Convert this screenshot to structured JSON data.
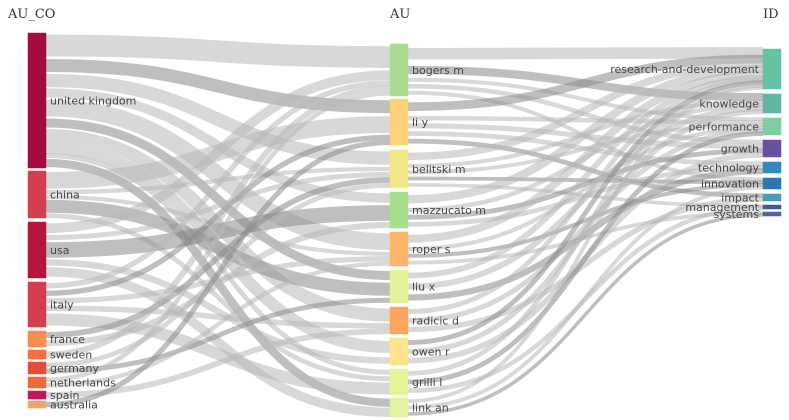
{
  "columns": [
    {
      "key": "au_co",
      "title": "AU_CO"
    },
    {
      "key": "au",
      "title": "AU"
    },
    {
      "key": "id",
      "title": "ID"
    }
  ],
  "nodes": {
    "au_co": [
      {
        "label": "united kingdom",
        "color": "#a50b3e"
      },
      {
        "label": "china",
        "color": "#d53e4f"
      },
      {
        "label": "usa",
        "color": "#b5163c"
      },
      {
        "label": "italy",
        "color": "#d53e4f"
      },
      {
        "label": "france",
        "color": "#f88d52"
      },
      {
        "label": "sweden",
        "color": "#f46d43"
      },
      {
        "label": "germany",
        "color": "#e54a3c"
      },
      {
        "label": "netherlands",
        "color": "#ee6a3a"
      },
      {
        "label": "spain",
        "color": "#c2185b"
      },
      {
        "label": "australia",
        "color": "#f6a36a"
      }
    ],
    "au": [
      {
        "label": "bogers m",
        "color": "#addc91"
      },
      {
        "label": "li y",
        "color": "#fdd178"
      },
      {
        "label": "belitski m",
        "color": "#f2e785"
      },
      {
        "label": "mazzucato m",
        "color": "#a9de8f"
      },
      {
        "label": "roper s",
        "color": "#fdb567"
      },
      {
        "label": "liu x",
        "color": "#e2f399"
      },
      {
        "label": "radicic d",
        "color": "#fca55d"
      },
      {
        "label": "owen r",
        "color": "#fee38c"
      },
      {
        "label": "grilli l",
        "color": "#e6f59a"
      },
      {
        "label": "link an",
        "color": "#e3f4a0"
      }
    ],
    "id": [
      {
        "label": "research-and-development",
        "color": "#66c2a5"
      },
      {
        "label": "knowledge",
        "color": "#5fb6a5"
      },
      {
        "label": "performance",
        "color": "#7fcc9e"
      },
      {
        "label": "growth",
        "color": "#6a4fa0"
      },
      {
        "label": "technology",
        "color": "#3288bd"
      },
      {
        "label": "innovation",
        "color": "#2e78b0"
      },
      {
        "label": "impact",
        "color": "#4a9ab8"
      },
      {
        "label": "management",
        "color": "#3d5a9a"
      },
      {
        "label": "systems",
        "color": "#5560a8"
      }
    ]
  },
  "links_left": [
    [
      0,
      0,
      5
    ],
    [
      0,
      1,
      3
    ],
    [
      0,
      2,
      3
    ],
    [
      0,
      3,
      2
    ],
    [
      0,
      4,
      4
    ],
    [
      0,
      5,
      2
    ],
    [
      0,
      6,
      3
    ],
    [
      0,
      7,
      2
    ],
    [
      0,
      8,
      1
    ],
    [
      0,
      9,
      2
    ],
    [
      1,
      1,
      4
    ],
    [
      1,
      5,
      3
    ],
    [
      1,
      4,
      1
    ],
    [
      1,
      2,
      1
    ],
    [
      1,
      8,
      1
    ],
    [
      2,
      0,
      2
    ],
    [
      2,
      3,
      3
    ],
    [
      2,
      9,
      2
    ],
    [
      2,
      7,
      1
    ],
    [
      2,
      2,
      1
    ],
    [
      3,
      8,
      2
    ],
    [
      3,
      6,
      1
    ],
    [
      3,
      4,
      1
    ],
    [
      3,
      1,
      1
    ],
    [
      3,
      0,
      1
    ],
    [
      4,
      2,
      1
    ],
    [
      4,
      3,
      1
    ],
    [
      5,
      0,
      1
    ],
    [
      6,
      2,
      1
    ],
    [
      6,
      5,
      1
    ],
    [
      7,
      4,
      1
    ],
    [
      7,
      0,
      1
    ],
    [
      8,
      6,
      1
    ],
    [
      9,
      1,
      1
    ]
  ],
  "links_right": [
    [
      0,
      0,
      3
    ],
    [
      0,
      1,
      2
    ],
    [
      0,
      2,
      1
    ],
    [
      0,
      3,
      1
    ],
    [
      0,
      5,
      1
    ],
    [
      1,
      0,
      2
    ],
    [
      1,
      4,
      1
    ],
    [
      1,
      2,
      1
    ],
    [
      1,
      6,
      1
    ],
    [
      1,
      3,
      1
    ],
    [
      2,
      0,
      2
    ],
    [
      2,
      1,
      1
    ],
    [
      2,
      2,
      1
    ],
    [
      2,
      5,
      1
    ],
    [
      2,
      7,
      1
    ],
    [
      3,
      0,
      2
    ],
    [
      3,
      1,
      1
    ],
    [
      3,
      3,
      1
    ],
    [
      3,
      4,
      1
    ],
    [
      4,
      0,
      2
    ],
    [
      4,
      2,
      1
    ],
    [
      4,
      5,
      1
    ],
    [
      4,
      8,
      1
    ],
    [
      5,
      0,
      1
    ],
    [
      5,
      1,
      1
    ],
    [
      5,
      4,
      1
    ],
    [
      6,
      0,
      1
    ],
    [
      6,
      2,
      1
    ],
    [
      6,
      6,
      1
    ],
    [
      7,
      0,
      1
    ],
    [
      7,
      1,
      1
    ],
    [
      7,
      3,
      1
    ],
    [
      8,
      0,
      1
    ],
    [
      8,
      2,
      1
    ],
    [
      8,
      7,
      1
    ],
    [
      9,
      0,
      1
    ],
    [
      9,
      5,
      1
    ],
    [
      9,
      8,
      1
    ]
  ],
  "style": {
    "link_color": "#b8b8b8",
    "link_color_dark": "#8a8a8a"
  }
}
